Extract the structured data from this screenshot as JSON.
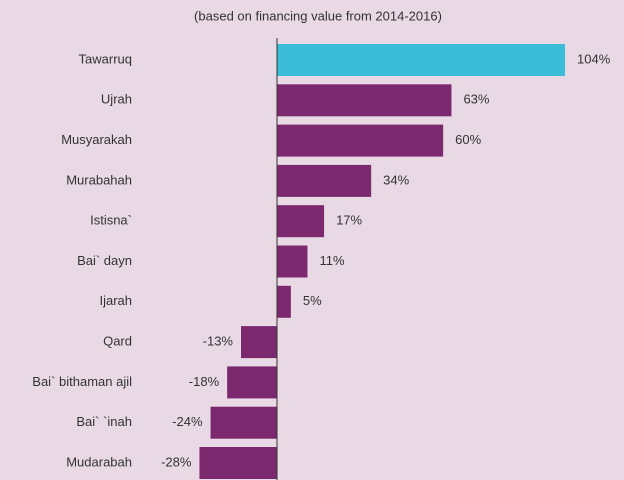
{
  "chart_data": {
    "type": "bar",
    "orientation": "horizontal",
    "subtitle": "(based on financing value from 2014-2016)",
    "categories": [
      "Tawarruq",
      "Ujrah",
      "Musyarakah",
      "Murabahah",
      "Istisna`",
      "Bai` dayn",
      "Ijarah",
      "Qard",
      "Bai` bithaman ajil",
      "Bai` `inah",
      "Mudarabah"
    ],
    "values": [
      104,
      63,
      60,
      34,
      17,
      11,
      5,
      -13,
      -18,
      -24,
      -28
    ],
    "value_labels": [
      "104%",
      "63%",
      "60%",
      "34%",
      "17%",
      "11%",
      "5%",
      "-13%",
      "-18%",
      "-24%",
      "-28%"
    ],
    "colors": [
      "#3bbcd7",
      "#7b286f",
      "#7b286f",
      "#7b286f",
      "#7b286f",
      "#7b286f",
      "#7b286f",
      "#7b286f",
      "#7b286f",
      "#7b286f",
      "#7b286f"
    ]
  }
}
